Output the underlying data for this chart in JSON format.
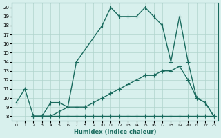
{
  "xlabel": "Humidex (Indice chaleur)",
  "ylabel": "",
  "xlim": [
    -0.5,
    23.5
  ],
  "ylim": [
    7.5,
    20.5
  ],
  "xticks": [
    0,
    1,
    2,
    3,
    4,
    5,
    6,
    7,
    8,
    9,
    10,
    11,
    12,
    13,
    14,
    15,
    16,
    17,
    18,
    19,
    20,
    21,
    22,
    23
  ],
  "yticks": [
    8,
    9,
    10,
    11,
    12,
    13,
    14,
    15,
    16,
    17,
    18,
    19,
    20
  ],
  "bg_color": "#d8f0ed",
  "grid_color": "#b0d4cc",
  "line_color": "#1a6b5e",
  "line1_x": [
    0,
    1,
    2,
    3,
    4,
    5,
    6,
    7,
    10,
    11,
    12,
    13,
    14,
    15,
    16,
    17,
    18,
    19,
    20,
    21,
    22,
    23
  ],
  "line1_y": [
    9.5,
    11,
    8,
    8,
    9.5,
    9.5,
    9,
    14,
    18,
    20,
    19,
    19,
    19,
    20,
    19,
    18,
    14,
    19,
    14,
    10,
    9.5,
    8
  ],
  "line2_x": [
    2,
    3,
    4,
    5,
    6,
    7,
    8,
    9,
    10,
    11,
    12,
    13,
    14,
    15,
    16,
    17,
    18,
    19,
    20,
    21,
    22,
    23
  ],
  "line2_y": [
    8,
    8,
    8,
    8.5,
    9,
    9,
    9,
    9.5,
    10,
    10.5,
    11,
    11.5,
    12,
    12.5,
    12.5,
    13,
    13,
    13.5,
    12,
    10,
    9.5,
    8
  ],
  "line3_x": [
    2,
    3,
    4,
    5,
    6,
    7,
    8,
    9,
    10,
    11,
    12,
    13,
    14,
    15,
    16,
    17,
    18,
    19,
    20,
    21,
    22,
    23
  ],
  "line3_y": [
    8,
    8,
    8,
    8,
    8,
    8,
    8,
    8,
    8,
    8,
    8,
    8,
    8,
    8,
    8,
    8,
    8,
    8,
    8,
    8,
    8,
    8
  ]
}
